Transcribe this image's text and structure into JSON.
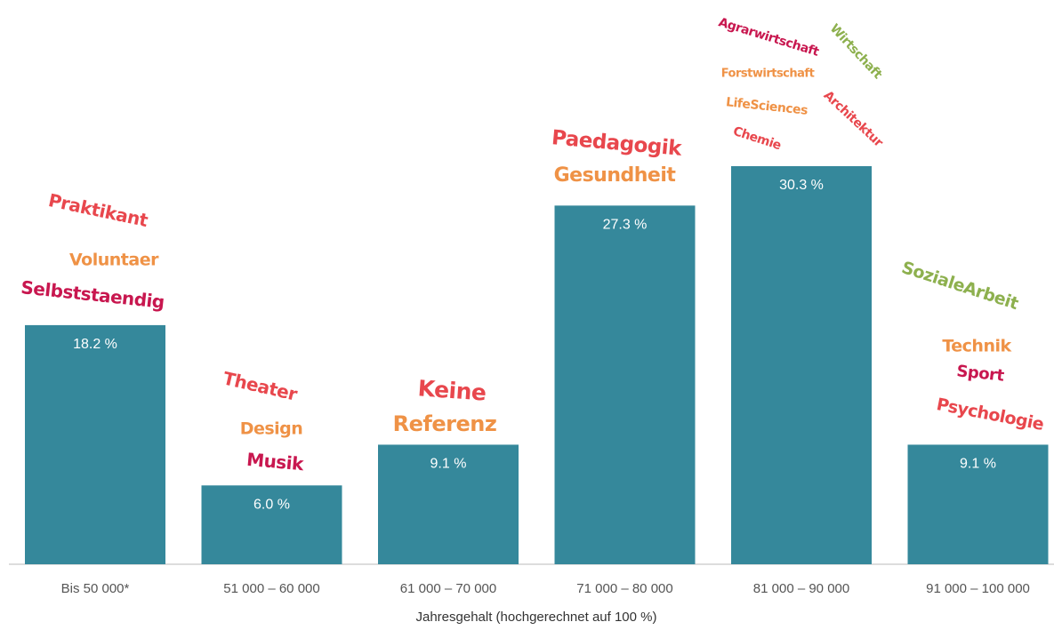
{
  "chart_data": {
    "type": "bar",
    "xlabel": "Jahresgehalt (hochgerechnet auf 100 %)",
    "ylabel": "",
    "ylim": [
      0,
      35
    ],
    "grid": false,
    "legend": "none",
    "bar_color": "#35889b",
    "categories": [
      "Bis 50 000*",
      "51 000 – 60 000",
      "61 000 – 70 000",
      "71 000 – 80 000",
      "81 000 – 90 000",
      "91 000 – 100 000"
    ],
    "values": [
      18.2,
      6.0,
      9.1,
      27.3,
      30.3,
      9.1
    ],
    "value_labels": [
      "18.2 %",
      "6.0 %",
      "9.1 %",
      "27.3 %",
      "30.3 %",
      "9.1 %"
    ],
    "annotations": [
      {
        "category": 0,
        "words": [
          {
            "text": "Praktikant",
            "color": "#e8474d"
          },
          {
            "text": "Voluntaer",
            "color": "#ef9246"
          },
          {
            "text": "Selbststaendig",
            "color": "#c8174f"
          }
        ]
      },
      {
        "category": 1,
        "words": [
          {
            "text": "Theater",
            "color": "#e8474d"
          },
          {
            "text": "Design",
            "color": "#ef9246"
          },
          {
            "text": "Musik",
            "color": "#c8174f"
          }
        ]
      },
      {
        "category": 2,
        "words": [
          {
            "text": "Keine",
            "color": "#e8474d"
          },
          {
            "text": "Referenz",
            "color": "#ef9246"
          }
        ]
      },
      {
        "category": 3,
        "words": [
          {
            "text": "Paedagogik",
            "color": "#e8474d"
          },
          {
            "text": "Gesundheit",
            "color": "#ef9246"
          }
        ]
      },
      {
        "category": 4,
        "words": [
          {
            "text": "Agrarwirtschaft",
            "color": "#c8174f"
          },
          {
            "text": "Wirtschaft",
            "color": "#8db04e"
          },
          {
            "text": "Forstwirtschaft",
            "color": "#ef9246"
          },
          {
            "text": "LifeSciences",
            "color": "#ef9246"
          },
          {
            "text": "Architektur",
            "color": "#e8474d"
          },
          {
            "text": "Chemie",
            "color": "#e8474d"
          }
        ]
      },
      {
        "category": 5,
        "words": [
          {
            "text": "SozialeArbeit",
            "color": "#8db04e"
          },
          {
            "text": "Technik",
            "color": "#ef9246"
          },
          {
            "text": "Sport",
            "color": "#c8174f"
          },
          {
            "text": "Psychologie",
            "color": "#e8474d"
          }
        ]
      }
    ]
  }
}
